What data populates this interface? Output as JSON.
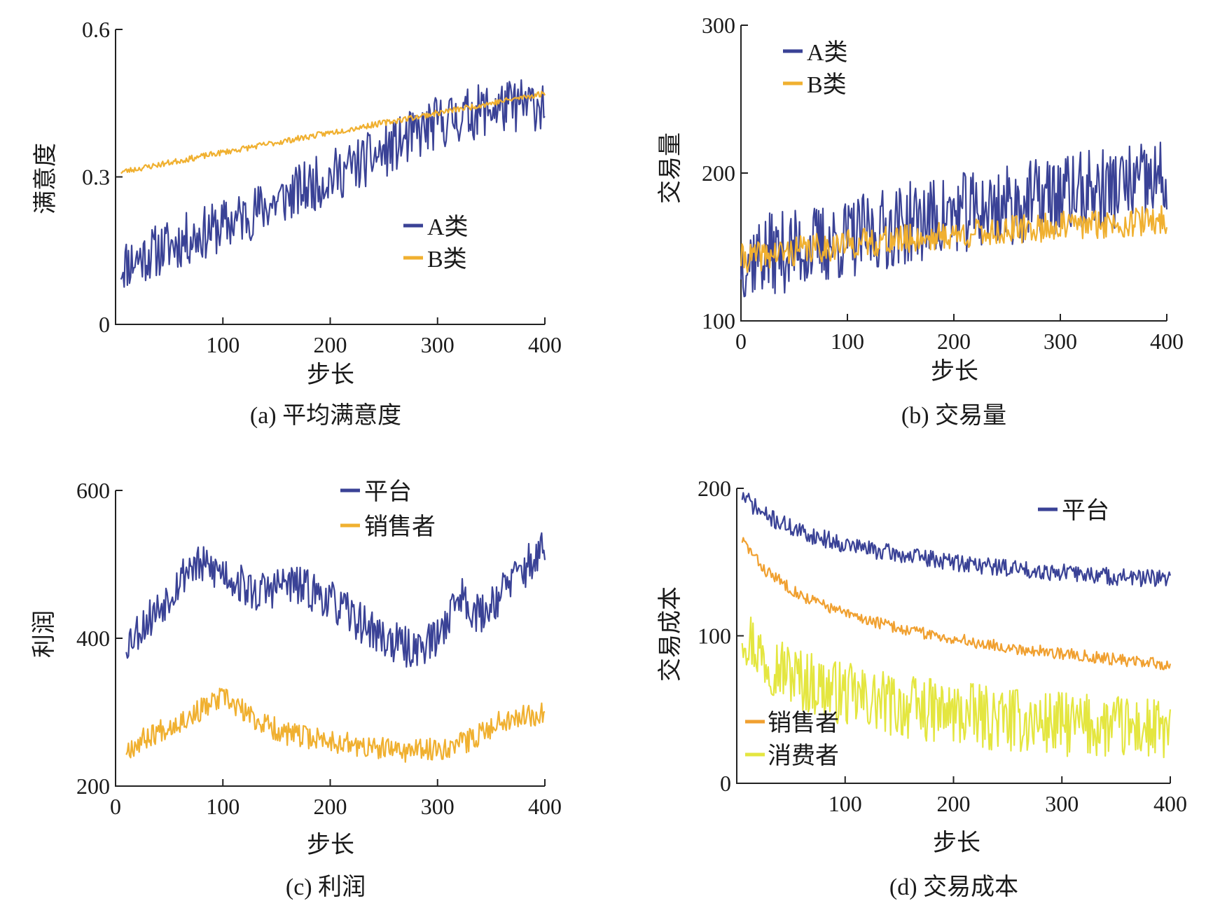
{
  "chart_data": [
    {
      "type": "line",
      "caption": "(a) 平均满意度",
      "xlabel": "步长",
      "ylabel": "满意度",
      "xlim": [
        0,
        400
      ],
      "ylim": [
        0,
        0.6
      ],
      "xticks": [
        100,
        200,
        300,
        400
      ],
      "xtick_labels": [
        "100",
        "200",
        "300",
        "400"
      ],
      "yticks": [
        0,
        0.3,
        0.6
      ],
      "ytick_labels": [
        "0",
        "0.3",
        "0.6"
      ],
      "legend_position": "center-right",
      "series": [
        {
          "name": "A类",
          "color": "#3a4296",
          "noise": 0.055,
          "seed": 11,
          "x": [
            5,
            50,
            100,
            150,
            200,
            250,
            300,
            350,
            400
          ],
          "y": [
            0.12,
            0.16,
            0.2,
            0.25,
            0.3,
            0.35,
            0.41,
            0.44,
            0.45
          ]
        },
        {
          "name": "B类",
          "color": "#f0b030",
          "noise": 0.006,
          "seed": 23,
          "x": [
            5,
            100,
            200,
            300,
            400
          ],
          "y": [
            0.31,
            0.35,
            0.39,
            0.43,
            0.47
          ]
        }
      ]
    },
    {
      "type": "line",
      "caption": "(b) 交易量",
      "xlabel": "步长",
      "ylabel": "交易量",
      "xlim": [
        0,
        400
      ],
      "ylim": [
        100,
        300
      ],
      "xticks": [
        0,
        100,
        200,
        300,
        400
      ],
      "xtick_labels": [
        "0",
        "100",
        "200",
        "300",
        "400"
      ],
      "yticks": [
        100,
        200,
        300
      ],
      "ytick_labels": [
        "100",
        "200",
        "300"
      ],
      "legend_position": "top-left",
      "series": [
        {
          "name": "A类",
          "color": "#3a4296",
          "noise": 28,
          "seed": 37,
          "x": [
            0,
            50,
            100,
            150,
            200,
            250,
            300,
            350,
            400
          ],
          "y": [
            142,
            148,
            155,
            165,
            172,
            178,
            185,
            190,
            195
          ]
        },
        {
          "name": "B类",
          "color": "#f0b030",
          "noise": 10,
          "seed": 41,
          "x": [
            0,
            100,
            200,
            300,
            400
          ],
          "y": [
            142,
            152,
            158,
            164,
            168
          ]
        }
      ]
    },
    {
      "type": "line",
      "caption": "(c) 利润",
      "xlabel": "步长",
      "ylabel": "利润",
      "xlim": [
        0,
        400
      ],
      "ylim": [
        200,
        600
      ],
      "xticks": [
        0,
        100,
        200,
        300,
        400
      ],
      "xtick_labels": [
        "0",
        "100",
        "200",
        "300",
        "400"
      ],
      "yticks": [
        200,
        400,
        600
      ],
      "ytick_labels": [
        "200",
        "400",
        "600"
      ],
      "legend_position": "top-center",
      "series": [
        {
          "name": "平台",
          "color": "#3a4296",
          "noise": 28,
          "seed": 53,
          "x": [
            10,
            40,
            70,
            100,
            130,
            160,
            190,
            220,
            250,
            275,
            300,
            320,
            340,
            370,
            400
          ],
          "y": [
            395,
            440,
            500,
            490,
            460,
            475,
            460,
            430,
            400,
            385,
            400,
            460,
            430,
            480,
            520
          ]
        },
        {
          "name": "销售者",
          "color": "#f0b030",
          "noise": 16,
          "seed": 67,
          "x": [
            10,
            40,
            70,
            100,
            130,
            160,
            200,
            240,
            280,
            300,
            330,
            360,
            400
          ],
          "y": [
            250,
            275,
            295,
            320,
            290,
            270,
            262,
            250,
            248,
            250,
            262,
            290,
            300
          ]
        }
      ]
    },
    {
      "type": "line",
      "caption": "(d) 交易成本",
      "xlabel": "步长",
      "ylabel": "交易成本",
      "xlim": [
        0,
        400
      ],
      "ylim": [
        0,
        200
      ],
      "xticks": [
        100,
        200,
        300,
        400
      ],
      "xtick_labels": [
        "100",
        "200",
        "300",
        "400"
      ],
      "yticks": [
        0,
        100,
        200
      ],
      "ytick_labels": [
        "0",
        "100",
        "200"
      ],
      "legend_position": "split: top-right and bottom-left",
      "series": [
        {
          "name": "平台",
          "color": "#3a4296",
          "noise": 6,
          "seed": 71,
          "x": [
            5,
            25,
            60,
            100,
            150,
            200,
            250,
            300,
            350,
            400
          ],
          "y": [
            195,
            182,
            170,
            162,
            155,
            150,
            146,
            143,
            140,
            138
          ]
        },
        {
          "name": "销售者",
          "color": "#f0a030",
          "noise": 4,
          "seed": 83,
          "x": [
            5,
            25,
            60,
            100,
            150,
            200,
            250,
            300,
            350,
            400
          ],
          "y": [
            165,
            145,
            127,
            115,
            105,
            98,
            92,
            88,
            84,
            80
          ]
        },
        {
          "name": "消费者",
          "color": "#e4e640",
          "noise": 22,
          "seed": 97,
          "x": [
            5,
            25,
            60,
            100,
            150,
            200,
            250,
            300,
            350,
            400
          ],
          "y": [
            105,
            85,
            70,
            60,
            52,
            47,
            43,
            40,
            38,
            35
          ]
        }
      ]
    }
  ]
}
